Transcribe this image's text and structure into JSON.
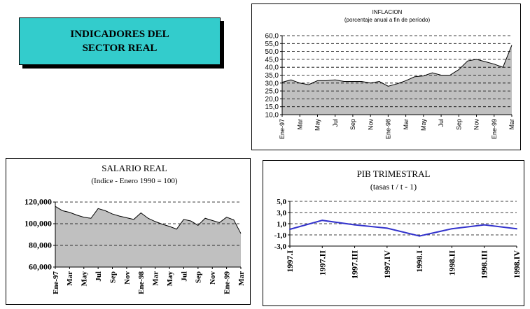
{
  "header": {
    "line1": "INDICADORES DEL",
    "line2": "SECTOR REAL"
  },
  "chart_data": [
    {
      "id": "inflacion",
      "type": "area",
      "title": "INFLACION",
      "subtitle": "(porcentaje anual a fin de período)",
      "xlabel": "",
      "ylabel": "",
      "ylim": [
        10,
        60
      ],
      "yticks": [
        "60,0",
        "55,0",
        "50,0",
        "45,0",
        "40,0",
        "35,0",
        "30,0",
        "25,0",
        "20,0",
        "15,0",
        "10,0"
      ],
      "xticks": [
        "Ene-97",
        "Mar",
        "May",
        "Jul",
        "Sep",
        "Nov",
        "Ene-98",
        "Mar",
        "May",
        "Jul",
        "Sep",
        "Nov",
        "Ene-99",
        "Mar"
      ],
      "grid": "horizontal-dashed",
      "colors": {
        "fill": "#c0c0c0",
        "line": "#000000"
      },
      "x": [
        "Ene-97",
        "Feb",
        "Mar",
        "Abr",
        "May",
        "Jun",
        "Jul",
        "Ago",
        "Sep",
        "Oct",
        "Nov",
        "Dic",
        "Ene-98",
        "Feb",
        "Mar",
        "Abr",
        "May",
        "Jun",
        "Jul",
        "Ago",
        "Sep",
        "Oct",
        "Nov",
        "Dic",
        "Ene-99",
        "Feb",
        "Mar"
      ],
      "values": [
        30.5,
        32.0,
        30.0,
        29.0,
        31.5,
        31.5,
        32.0,
        31.0,
        31.0,
        31.0,
        30.0,
        31.0,
        28.0,
        29.5,
        31.5,
        34.0,
        34.5,
        36.5,
        35.0,
        35.0,
        38.5,
        44.0,
        45.0,
        43.5,
        42.0,
        40.0,
        54.0
      ]
    },
    {
      "id": "salario",
      "type": "area",
      "title": "SALARIO REAL",
      "subtitle": "(Indice - Enero 1990 = 100)",
      "xlabel": "",
      "ylabel": "",
      "ylim": [
        60000,
        120000
      ],
      "yticks": [
        "120,000",
        "100,000",
        "80,000",
        "60,000"
      ],
      "xticks": [
        "Ene-97",
        "Mar",
        "May",
        "Jul",
        "Sep",
        "Nov",
        "Ene-98",
        "Mar",
        "May",
        "Jul",
        "Sep",
        "Nov",
        "Ene-99",
        "Mar"
      ],
      "grid": "horizontal-dashed",
      "colors": {
        "fill": "#c0c0c0",
        "line": "#000000"
      },
      "x": [
        "Ene-97",
        "Feb",
        "Mar",
        "Abr",
        "May",
        "Jun",
        "Jul",
        "Ago",
        "Sep",
        "Oct",
        "Nov",
        "Dic",
        "Ene-98",
        "Feb",
        "Mar",
        "Abr",
        "May",
        "Jun",
        "Jul",
        "Ago",
        "Sep",
        "Oct",
        "Nov",
        "Dic",
        "Ene-99",
        "Feb",
        "Mar"
      ],
      "values": [
        116000,
        112000,
        110500,
        108000,
        106000,
        105000,
        114000,
        112000,
        109000,
        107000,
        105500,
        104000,
        110000,
        105000,
        102000,
        99500,
        97500,
        95000,
        104000,
        102500,
        98500,
        105000,
        103000,
        101000,
        106000,
        103500,
        91000
      ]
    },
    {
      "id": "pib",
      "type": "line",
      "title": "PIB TRIMESTRAL",
      "subtitle": "(tasas t / t - 1)",
      "xlabel": "",
      "ylabel": "",
      "ylim": [
        -3,
        5
      ],
      "yticks": [
        "5,0",
        "3,0",
        "1,0",
        "-1,0",
        "-3,0"
      ],
      "grid": "horizontal-dashed",
      "colors": {
        "line": "#3333cc"
      },
      "categories": [
        "1997.I",
        "1997.II",
        "1997.III",
        "1997.IV",
        "1998.I",
        "1998.II",
        "1998.III",
        "1998.IV"
      ],
      "values": [
        0.0,
        1.6,
        0.8,
        0.2,
        -1.2,
        0.1,
        0.8,
        0.1
      ]
    }
  ]
}
